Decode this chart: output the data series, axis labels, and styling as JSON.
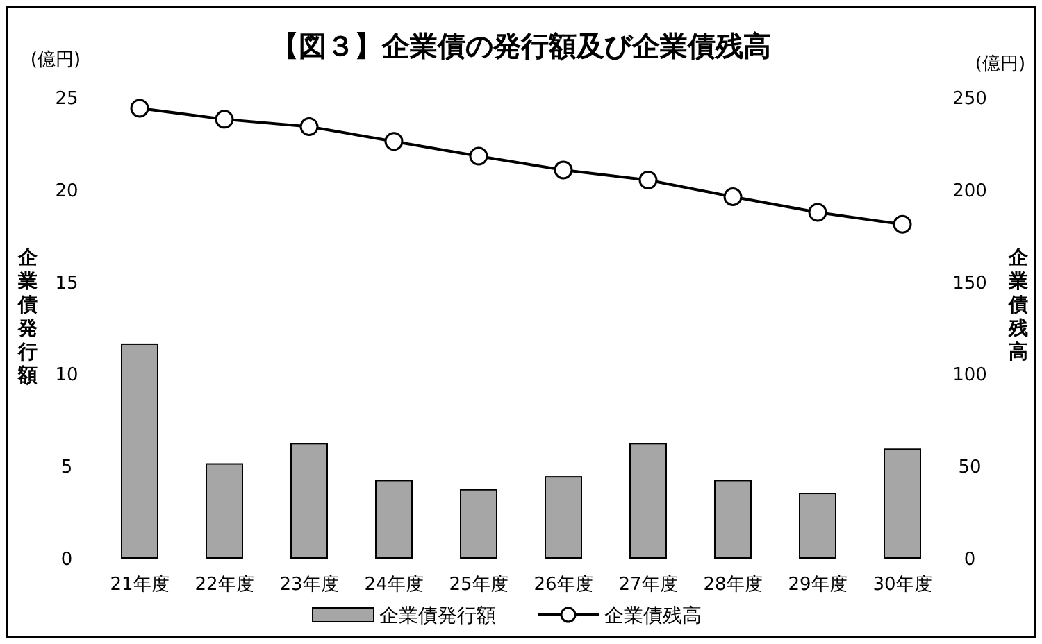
{
  "chart_data": {
    "type": "bar",
    "title": "【図３】企業債の発行額及び企業債残高",
    "ylabel": "企業債発行額",
    "y2label": "企業債残高",
    "annotations": [
      "(億円)",
      "(億円)"
    ],
    "categories": [
      "21年度",
      "22年度",
      "23年度",
      "24年度",
      "25年度",
      "26年度",
      "27年度",
      "28年度",
      "29年度",
      "30年度"
    ],
    "series": [
      {
        "name": "企業債発行額",
        "color": "#a6a6a6",
        "values": [
          11.6,
          5.1,
          6.2,
          4.2,
          3.7,
          4.4,
          6.2,
          4.2,
          3.5,
          5.9
        ]
      },
      {
        "name": "企業債残高",
        "type": "line",
        "axis": "y2",
        "color": "#000000",
        "marker": "circle",
        "values": [
          244,
          238,
          234,
          226,
          218,
          210.5,
          205,
          196,
          187.5,
          181
        ]
      }
    ],
    "ylim": [
      0,
      25
    ],
    "yticks": [
      0,
      5,
      10,
      15,
      20,
      25
    ],
    "y2lim": [
      0,
      250
    ],
    "y2ticks": [
      0,
      50,
      100,
      150,
      200,
      250
    ],
    "legend": "bottom"
  }
}
